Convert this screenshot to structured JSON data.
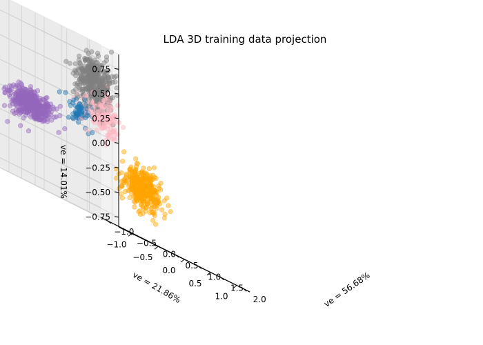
{
  "chart_data": {
    "type": "scatter",
    "projection": "3d",
    "title": "LDA 3D training data projection",
    "xlabel": "ve = 56.68%",
    "ylabel": "ve = 21.86%",
    "zlabel": "ve = 14.01%",
    "xticks": [
      "−1.0",
      "−0.5",
      "0.0",
      "0.5",
      "1.0",
      "1.5",
      "2.0"
    ],
    "yticks": [
      "−1.0",
      "−0.5",
      "0.0",
      "0.5",
      "1.0"
    ],
    "zticks": [
      "−0.75",
      "−0.50",
      "−0.25",
      "0.00",
      "0.25",
      "0.50",
      "0.75"
    ],
    "xlim": [
      -1.15,
      2.15
    ],
    "ylim": [
      -1.25,
      1.25
    ],
    "zlim": [
      -0.85,
      0.9
    ],
    "grid": true,
    "series": [
      {
        "color": "#9467bd",
        "center": [
          -0.2,
          -0.9,
          -0.05
        ],
        "spread": [
          0.12,
          0.18,
          0.07
        ],
        "n": 420
      },
      {
        "color": "#1f77b4",
        "center": [
          0.2,
          -0.35,
          0.12
        ],
        "spread": [
          0.08,
          0.12,
          0.06
        ],
        "n": 60
      },
      {
        "color": "#ffb6c1",
        "center": [
          0.35,
          0.0,
          0.18
        ],
        "spread": [
          0.15,
          0.15,
          0.1
        ],
        "n": 140
      },
      {
        "color": "#808080",
        "center": [
          0.05,
          0.1,
          0.5
        ],
        "spread": [
          0.12,
          0.14,
          0.12
        ],
        "n": 420
      },
      {
        "color": "#ffa500",
        "center": [
          1.0,
          0.2,
          -0.35
        ],
        "spread": [
          0.14,
          0.14,
          0.1
        ],
        "n": 380
      }
    ]
  }
}
